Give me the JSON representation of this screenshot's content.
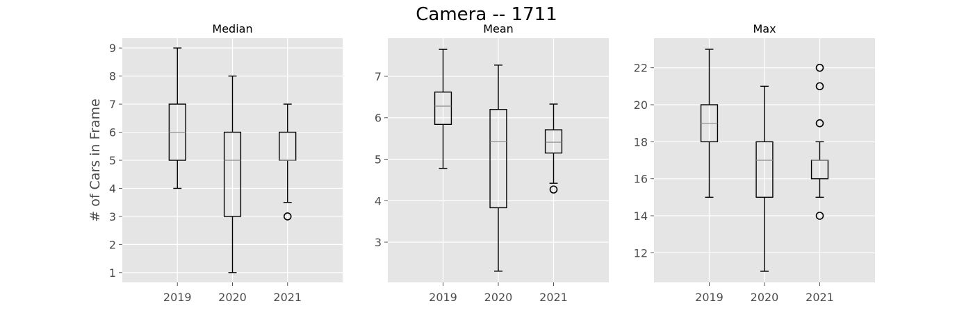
{
  "figure_title": "Camera -- 1711",
  "chart_data": [
    {
      "type": "box",
      "title": "Median",
      "xlabel": "",
      "ylabel": "# of Cars in Frame",
      "categories": [
        "2019",
        "2020",
        "2021"
      ],
      "ylim": [
        0.65,
        9.35
      ],
      "yticks": [
        1,
        2,
        3,
        4,
        5,
        6,
        7,
        8,
        9
      ],
      "grid": true,
      "boxes": [
        {
          "category": "2019",
          "whislo": 4,
          "q1": 5,
          "median": 6,
          "q3": 7,
          "whishi": 9,
          "fliers": []
        },
        {
          "category": "2020",
          "whislo": 1,
          "q1": 3,
          "median": 5,
          "q3": 6,
          "whishi": 8,
          "fliers": []
        },
        {
          "category": "2021",
          "whislo": 3.5,
          "q1": 5,
          "median": 5,
          "q3": 6,
          "whishi": 7,
          "fliers": [
            3
          ]
        }
      ]
    },
    {
      "type": "box",
      "title": "Mean",
      "xlabel": "",
      "ylabel": "",
      "categories": [
        "2019",
        "2020",
        "2021"
      ],
      "ylim": [
        2.03,
        7.92
      ],
      "yticks": [
        3,
        4,
        5,
        6,
        7
      ],
      "grid": true,
      "boxes": [
        {
          "category": "2019",
          "whislo": 4.78,
          "q1": 5.84,
          "median": 6.28,
          "q3": 6.62,
          "whishi": 7.65,
          "fliers": []
        },
        {
          "category": "2020",
          "whislo": 2.3,
          "q1": 3.83,
          "median": 5.43,
          "q3": 6.2,
          "whishi": 7.27,
          "fliers": []
        },
        {
          "category": "2021",
          "whislo": 4.42,
          "q1": 5.15,
          "median": 5.41,
          "q3": 5.71,
          "whishi": 6.33,
          "fliers": [
            4.27
          ]
        }
      ]
    },
    {
      "type": "box",
      "title": "Max",
      "xlabel": "",
      "ylabel": "",
      "categories": [
        "2019",
        "2020",
        "2021"
      ],
      "ylim": [
        10.4,
        23.6
      ],
      "yticks": [
        12,
        14,
        16,
        18,
        20,
        22
      ],
      "grid": true,
      "boxes": [
        {
          "category": "2019",
          "whislo": 15,
          "q1": 18,
          "median": 19,
          "q3": 20,
          "whishi": 23,
          "fliers": []
        },
        {
          "category": "2020",
          "whislo": 11,
          "q1": 15,
          "median": 17,
          "q3": 18,
          "whishi": 21,
          "fliers": []
        },
        {
          "category": "2021",
          "whislo": 15,
          "q1": 16,
          "median": 17,
          "q3": 17,
          "whishi": 18,
          "fliers": [
            14,
            19,
            21,
            22
          ]
        }
      ]
    }
  ]
}
